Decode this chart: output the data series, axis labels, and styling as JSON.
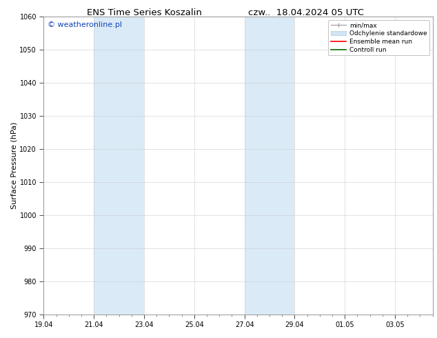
{
  "title_left": "ENS Time Series Koszalin",
  "title_right": "czw..  18.04.2024 05 UTC",
  "ylabel": "Surface Pressure (hPa)",
  "ylim": [
    970,
    1060
  ],
  "yticks": [
    970,
    980,
    990,
    1000,
    1010,
    1020,
    1030,
    1040,
    1050,
    1060
  ],
  "xtick_labels": [
    "19.04",
    "21.04",
    "23.04",
    "25.04",
    "27.04",
    "29.04",
    "01.05",
    "03.05"
  ],
  "xtick_positions": [
    0,
    2,
    4,
    6,
    8,
    10,
    12,
    14
  ],
  "xlim": [
    0,
    15.5
  ],
  "shaded_regions": [
    {
      "x_start": 2,
      "x_end": 4,
      "color": "#daeaf6"
    },
    {
      "x_start": 8,
      "x_end": 10,
      "color": "#daeaf6"
    }
  ],
  "watermark": "© weatheronline.pl",
  "watermark_color": "#1144bb",
  "background_color": "#ffffff",
  "legend_entries": [
    {
      "label": "min/max",
      "color": "#aaaaaa",
      "type": "errorbar"
    },
    {
      "label": "Odchylenie standardowe",
      "color": "#d0e5f5",
      "type": "patch"
    },
    {
      "label": "Ensemble mean run",
      "color": "red",
      "type": "line"
    },
    {
      "label": "Controll run",
      "color": "green",
      "type": "line"
    }
  ],
  "tick_fontsize": 7,
  "label_fontsize": 8,
  "title_fontsize": 9.5,
  "watermark_fontsize": 8
}
